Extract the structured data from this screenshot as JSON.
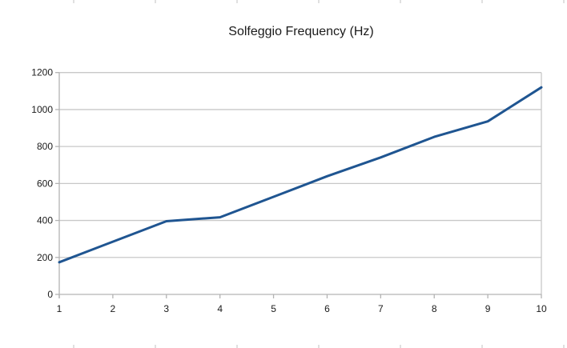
{
  "chart_data": {
    "type": "line",
    "title": "Solfeggio Frequency (Hz)",
    "xlabel": "",
    "ylabel": "",
    "categories": [
      "1",
      "2",
      "3",
      "4",
      "5",
      "6",
      "7",
      "8",
      "9",
      "10"
    ],
    "series": [
      {
        "name": "Solfeggio Frequency (Hz)",
        "values": [
          174,
          285,
          396,
          417,
          528,
          639,
          741,
          852,
          936,
          1120
        ],
        "color": "#1f5591"
      }
    ],
    "ylim": [
      0,
      1200
    ],
    "yticks": [
      0,
      200,
      400,
      600,
      800,
      1000,
      1200
    ],
    "grid": true,
    "legend": "none"
  },
  "colors": {
    "line": "#1f5591",
    "grid": "#c8c8c8",
    "axis": "#b3b3b3",
    "text": "#1a1a1a"
  }
}
